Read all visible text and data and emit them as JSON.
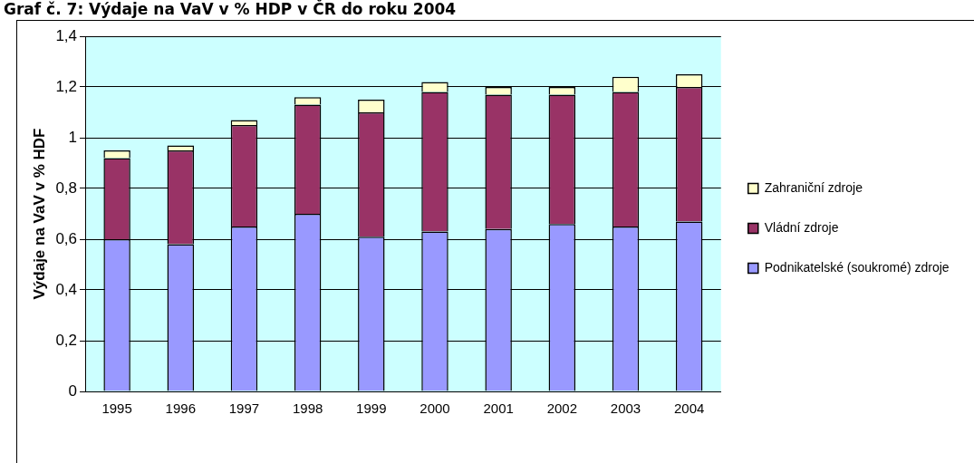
{
  "chart_data": {
    "type": "bar",
    "title": "Graf č. 7: Výdaje na VaV v % HDP v ČR do roku 2004",
    "ylabel": "Výdaje na VaV v % HDF",
    "categories": [
      "1995",
      "1996",
      "1997",
      "1998",
      "1999",
      "2000",
      "2001",
      "2002",
      "2003",
      "2004"
    ],
    "series": [
      {
        "name": "Podnikatelské (soukromé) zdroje",
        "color": "#9999ff",
        "values": [
          0.6,
          0.58,
          0.65,
          0.7,
          0.61,
          0.63,
          0.64,
          0.66,
          0.65,
          0.67
        ]
      },
      {
        "name": "Vládní zdroje",
        "color": "#993366",
        "values": [
          0.32,
          0.37,
          0.4,
          0.43,
          0.49,
          0.55,
          0.53,
          0.51,
          0.53,
          0.53
        ]
      },
      {
        "name": "Zahraniční zdroje",
        "color": "#ffffcc",
        "values": [
          0.03,
          0.02,
          0.02,
          0.03,
          0.05,
          0.04,
          0.03,
          0.03,
          0.06,
          0.05
        ]
      }
    ],
    "stacked": true,
    "ylim": [
      0,
      1.4
    ],
    "yticks": [
      0,
      {
        "value": 0.2,
        "label": "0,2"
      },
      {
        "value": 0.4,
        "label": "0,4"
      },
      {
        "value": 0.6,
        "label": "0,6"
      },
      {
        "value": 0.8,
        "label": "0,8"
      },
      1,
      {
        "value": 1.2,
        "label": "1,2"
      },
      {
        "value": 1.4,
        "label": "1,4"
      }
    ],
    "grid": "y",
    "legend": "right"
  }
}
